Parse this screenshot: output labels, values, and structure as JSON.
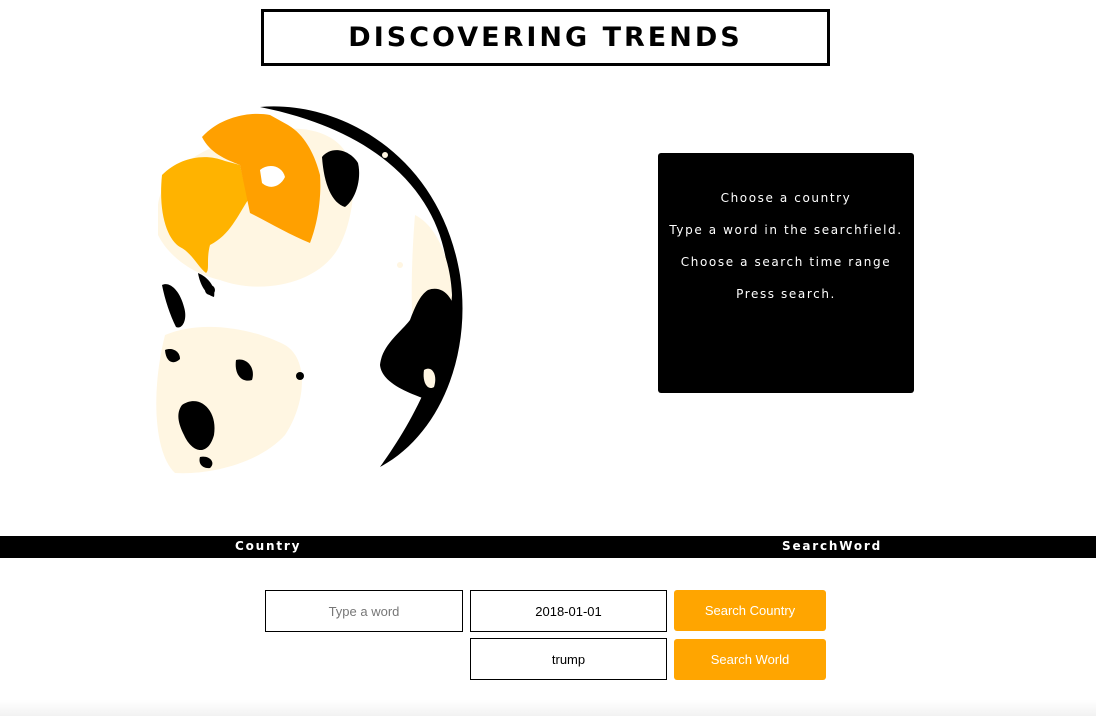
{
  "header": {
    "title": "DISCOVERING TRENDS"
  },
  "info_panel": {
    "lines": [
      "Choose a country",
      "Type a word in the searchfield.",
      "Choose a search time range",
      "Press search."
    ]
  },
  "tabs": {
    "country": "Country",
    "searchword": "SearchWord"
  },
  "search": {
    "word_placeholder": "Type a word",
    "word_value": "",
    "date_value": "2018-01-01",
    "term_value": "trump",
    "search_country_label": "Search Country",
    "search_world_label": "Search World"
  },
  "colors": {
    "accent": "#ffa500",
    "highlight_light": "#ffb300",
    "highlight_dark": "#ffa000",
    "land_pale": "#fff6e2",
    "land_dark": "#000000"
  }
}
